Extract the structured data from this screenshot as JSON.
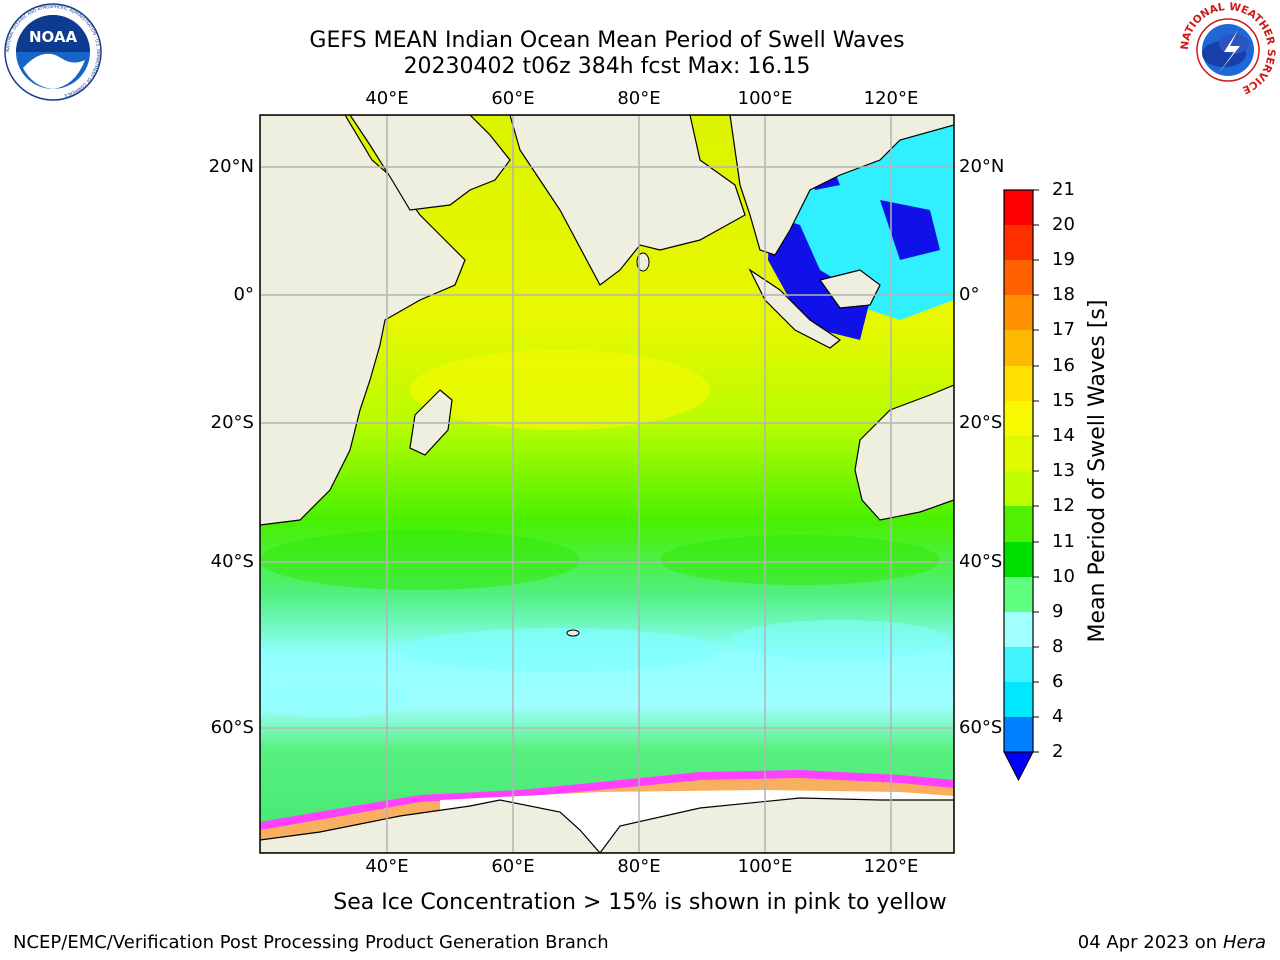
{
  "header": {
    "title_line1": "GEFS MEAN Indian Ocean Mean Period of Swell Waves",
    "title_line2": "20230402 t06z 384h fcst   Max: 16.15"
  },
  "logos": {
    "noaa_text": "NOAA",
    "noaa_ring": "NATIONAL OCEANIC AND ATMOSPHERIC ADMINISTRATION · U.S. DEPARTMENT OF COMMERCE",
    "nws_ring": "NATIONAL WEATHER SERVICE"
  },
  "map": {
    "lon_ticks": [
      "40°E",
      "60°E",
      "80°E",
      "100°E",
      "120°E"
    ],
    "lat_ticks": [
      "20°N",
      "0°",
      "20°S",
      "40°S",
      "60°S"
    ],
    "colors": {
      "land": "#efefe0",
      "frame": "#000000",
      "grid": "#b4b4b4",
      "ice": "#ffffff"
    }
  },
  "colorbar": {
    "label": "Mean Period of Swell Waves [s]",
    "ticks": [
      "2",
      "4",
      "6",
      "8",
      "9",
      "10",
      "11",
      "12",
      "13",
      "14",
      "15",
      "16",
      "17",
      "18",
      "19",
      "20",
      "21"
    ],
    "colors": [
      "#0000ff",
      "#0080ff",
      "#00e8ff",
      "#40f4ff",
      "#a0ffff",
      "#60ff80",
      "#00e000",
      "#50f000",
      "#c0ff00",
      "#e0f800",
      "#f8f800",
      "#ffe000",
      "#ffb800",
      "#ff9000",
      "#ff6000",
      "#ff3000",
      "#ff0000"
    ]
  },
  "note": "Sea Ice Concentration > 15% is shown in pink to yellow",
  "footer": {
    "left": "NCEP/EMC/Verification Post Processing Product Generation Branch",
    "date": "04 Apr 2023 on ",
    "host": "Hera"
  }
}
